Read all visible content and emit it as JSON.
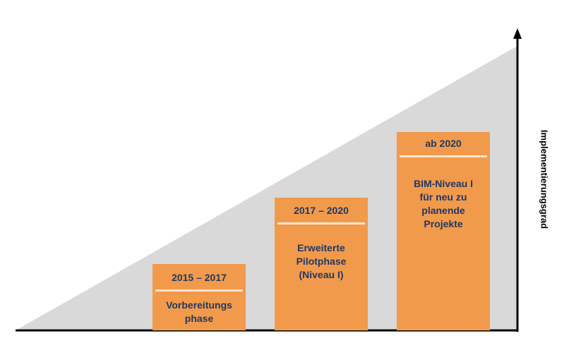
{
  "diagram": {
    "axis_label": "Implementierungsgrad",
    "phases": [
      {
        "period": "2015 – 2017",
        "description": "Vorbereitungs\nphase"
      },
      {
        "period": "2017 – 2020",
        "description": "Erweiterte\nPilotphase\n(Niveau I)"
      },
      {
        "period": "ab 2020",
        "description": "BIM-Niveau I\nfür neu zu\nplanende\nProjekte"
      }
    ]
  },
  "colors": {
    "triangle": "#d9d9d9",
    "box": "#f29a4b",
    "box_text": "#1f3864",
    "divider": "#fbe3cf",
    "axis": "#000000"
  }
}
